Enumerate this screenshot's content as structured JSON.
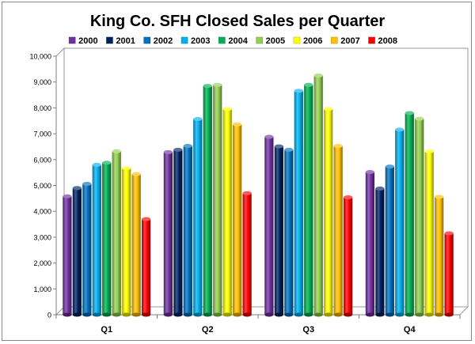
{
  "chart_data": {
    "type": "bar",
    "title": "King Co. SFH Closed Sales per Quarter",
    "xlabel": "",
    "ylabel": "",
    "categories": [
      "Q1",
      "Q2",
      "Q3",
      "Q4"
    ],
    "ylim": [
      0,
      10000
    ],
    "yticks": [
      0,
      1000,
      2000,
      3000,
      4000,
      5000,
      6000,
      7000,
      8000,
      9000,
      10000
    ],
    "ytick_labels": [
      "0",
      "1,000",
      "2,000",
      "3,000",
      "4,000",
      "5,000",
      "6,000",
      "7,000",
      "8,000",
      "9,000",
      "10,000"
    ],
    "grid": false,
    "legend_position": "top",
    "style": "3d-cylinder",
    "series": [
      {
        "name": "2000",
        "color": "#7030a0",
        "values": [
          4580,
          6290,
          6880,
          5520
        ]
      },
      {
        "name": "2001",
        "color": "#002060",
        "values": [
          4900,
          6380,
          6510,
          4880
        ]
      },
      {
        "name": "2002",
        "color": "#0070c0",
        "values": [
          5060,
          6530,
          6380,
          5730
        ]
      },
      {
        "name": "2003",
        "color": "#00b0f0",
        "values": [
          5800,
          7570,
          8660,
          7160
        ]
      },
      {
        "name": "2004",
        "color": "#00b050",
        "values": [
          5880,
          8850,
          8890,
          7800
        ]
      },
      {
        "name": "2005",
        "color": "#92d050",
        "values": [
          6320,
          8890,
          9250,
          7580
        ]
      },
      {
        "name": "2006",
        "color": "#ffff00",
        "values": [
          5670,
          7960,
          7960,
          6320
        ]
      },
      {
        "name": "2007",
        "color": "#ffc000",
        "values": [
          5440,
          7360,
          6530,
          4560
        ]
      },
      {
        "name": "2008",
        "color": "#ff0000",
        "values": [
          3700,
          4700,
          4540,
          3150
        ]
      }
    ]
  }
}
